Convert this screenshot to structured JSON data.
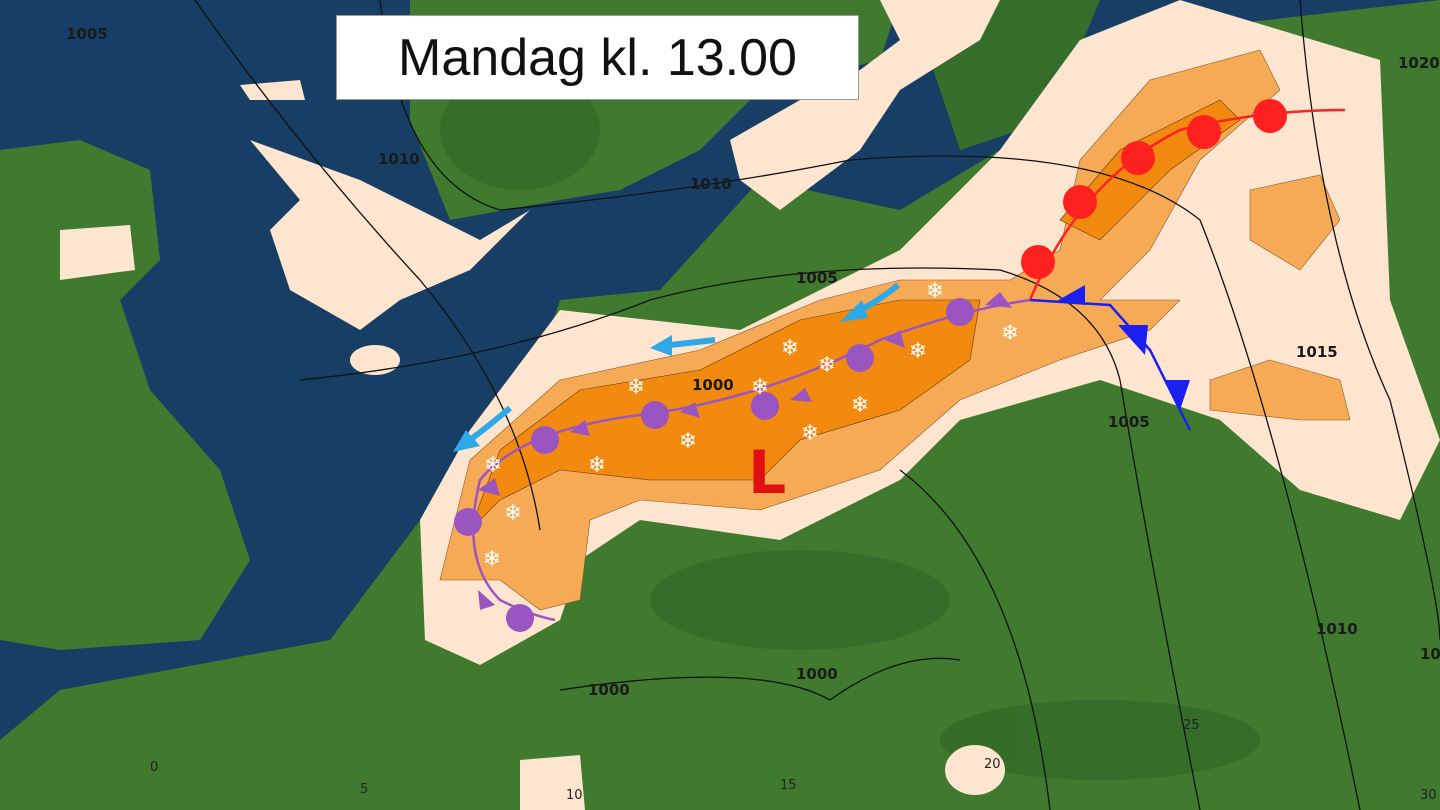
{
  "title": "Mandag kl. 13.00",
  "low_pressure_label": "L",
  "isobar_labels": [
    "1005",
    "1010",
    "1010",
    "1005",
    "1000",
    "1005",
    "1015",
    "1020",
    "1010",
    "1000",
    "1000",
    "10"
  ],
  "grid_labels": [
    "0",
    "5",
    "10",
    "15",
    "20",
    "25",
    "30"
  ],
  "colors": {
    "sea": "#173f66",
    "land": "#3f7a2e",
    "light_precip": "#fde5d0",
    "moderate_precip": "#f7aa55",
    "heavy_precip": "#f28a10",
    "warm_front": "#ff2020",
    "cold_front": "#1a20f0",
    "occluded_front": "#9b55c0",
    "wind_arrow": "#2ea8e6",
    "low": "#e01010"
  },
  "symbols": {
    "snow": "snowflake-icon",
    "wind": "wind-arrow-icon"
  }
}
